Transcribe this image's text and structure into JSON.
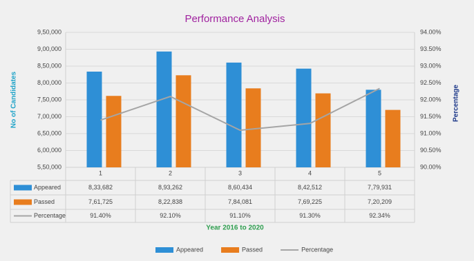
{
  "chart_data": {
    "type": "bar",
    "title": "Performance Analysis",
    "y_label": "No of Candidates",
    "y2_label": "Percentage",
    "x_label": "Year 2016 to 2020",
    "categories": [
      "1",
      "2",
      "3",
      "4",
      "5"
    ],
    "series": [
      {
        "name": "Appeared",
        "color": "#2e8fd6",
        "values": [
          833682,
          893262,
          860434,
          842512,
          779931
        ],
        "value_labels": [
          "8,33,682",
          "8,93,262",
          "8,60,434",
          "8,42,512",
          "7,79,931"
        ]
      },
      {
        "name": "Passed",
        "color": "#e87d1e",
        "values": [
          761725,
          822838,
          784081,
          769225,
          720209
        ],
        "value_labels": [
          "7,61,725",
          "8,22,838",
          "7,84,081",
          "7,69,225",
          "7,20,209"
        ]
      },
      {
        "name": "Percentage",
        "color": "#a5a5a5",
        "type": "line",
        "axis": "y2",
        "values": [
          91.4,
          92.1,
          91.1,
          91.3,
          92.34
        ],
        "value_labels": [
          "91.40%",
          "92.10%",
          "91.10%",
          "91.30%",
          "92.34%"
        ]
      }
    ],
    "ylim": [
      550000,
      950000
    ],
    "yticks": [
      {
        "value": 550000,
        "label": "5,50,000"
      },
      {
        "value": 600000,
        "label": "6,00,000"
      },
      {
        "value": 650000,
        "label": "6,50,000"
      },
      {
        "value": 700000,
        "label": "7,00,000"
      },
      {
        "value": 750000,
        "label": "7,50,000"
      },
      {
        "value": 800000,
        "label": "8,00,000"
      },
      {
        "value": 850000,
        "label": "8,50,000"
      },
      {
        "value": 900000,
        "label": "9,00,000"
      },
      {
        "value": 950000,
        "label": "9,50,000"
      }
    ],
    "y2lim": [
      90,
      94
    ],
    "y2ticks": [
      {
        "value": 90,
        "label": "90.00%"
      },
      {
        "value": 90.5,
        "label": "90.50%"
      },
      {
        "value": 91,
        "label": "91.00%"
      },
      {
        "value": 91.5,
        "label": "91.50%"
      },
      {
        "value": 92,
        "label": "92.00%"
      },
      {
        "value": 92.5,
        "label": "92.50%"
      },
      {
        "value": 93,
        "label": "93.00%"
      },
      {
        "value": 93.5,
        "label": "93.50%"
      },
      {
        "value": 94,
        "label": "94.00%"
      }
    ],
    "grid": true,
    "legend": "bottom"
  }
}
